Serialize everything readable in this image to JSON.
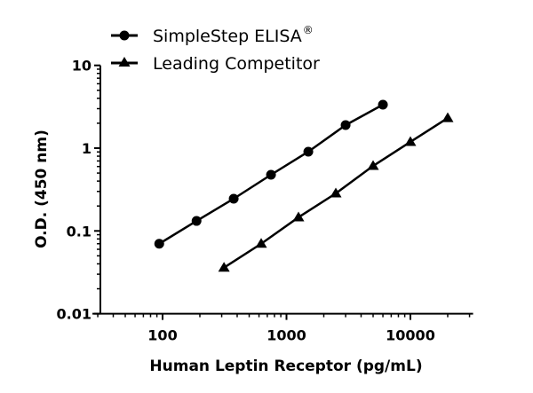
{
  "chart_data": {
    "type": "line",
    "title": "",
    "xlabel": "Human Leptin Receptor (pg/mL)",
    "ylabel": "O.D. (450 nm)",
    "xscale": "log",
    "yscale": "log",
    "xlim": [
      30,
      30000
    ],
    "ylim": [
      0.01,
      10
    ],
    "x_ticks": [
      {
        "value": 100,
        "label": "100"
      },
      {
        "value": 1000,
        "label": "1000"
      },
      {
        "value": 10000,
        "label": "10000"
      }
    ],
    "y_ticks": [
      {
        "value": 10,
        "label": "10"
      },
      {
        "value": 1,
        "label": "1"
      },
      {
        "value": 0.1,
        "label": "0.1"
      },
      {
        "value": 0.01,
        "label": "0.01"
      }
    ],
    "grid": false,
    "legend_position": "top-left, above plot",
    "series": [
      {
        "name": "SimpleStep ELISA",
        "name_superscript": "®",
        "marker": "circle",
        "color": "#000000",
        "x": [
          94,
          188,
          375,
          750,
          1500,
          3000,
          6000
        ],
        "y": [
          0.07,
          0.132,
          0.245,
          0.477,
          0.906,
          1.9,
          3.35
        ]
      },
      {
        "name": "Leading Competitor",
        "name_superscript": "",
        "marker": "triangle",
        "color": "#000000",
        "x": [
          313,
          625,
          1250,
          2500,
          5000,
          10000,
          20000
        ],
        "y": [
          0.036,
          0.07,
          0.146,
          0.284,
          0.61,
          1.19,
          2.31
        ]
      }
    ]
  }
}
